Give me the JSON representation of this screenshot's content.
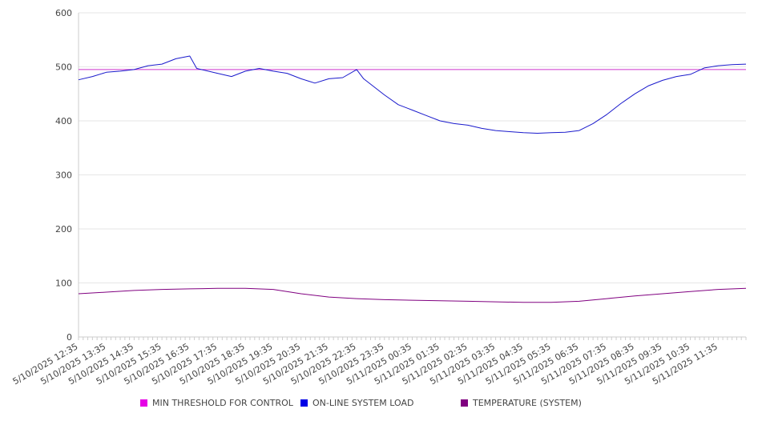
{
  "chart_data": {
    "type": "line",
    "title": "",
    "xlabel": "",
    "ylabel": "",
    "ylim": [
      0,
      600
    ],
    "yticks": [
      0,
      100,
      200,
      300,
      400,
      500,
      600
    ],
    "grid": true,
    "legend_placement": "bottom",
    "x_tick_labels": [
      "5/10/2025 12:35",
      "5/10/2025 13:35",
      "5/10/2025 14:35",
      "5/10/2025 15:35",
      "5/10/2025 16:35",
      "5/10/2025 17:35",
      "5/10/2025 18:35",
      "5/10/2025 19:35",
      "5/10/2025 20:35",
      "5/10/2025 21:35",
      "5/10/2025 22:35",
      "5/10/2025 23:35",
      "5/11/2025 00:35",
      "5/11/2025 01:35",
      "5/11/2025 02:35",
      "5/11/2025 03:35",
      "5/11/2025 04:35",
      "5/11/2025 05:35",
      "5/11/2025 06:35",
      "5/11/2025 07:35",
      "5/11/2025 08:35",
      "5/11/2025 09:35",
      "5/11/2025 10:35",
      "5/11/2025 11:35"
    ],
    "x_range": [
      "5/10/2025 12:35",
      "5/11/2025 12:35"
    ],
    "series": [
      {
        "name": "MIN THRESHOLD FOR CONTROL",
        "color": "#e600e6",
        "line_color": "#cc33cc",
        "points": [
          [
            "5/10/2025 12:35",
            495
          ],
          [
            "5/11/2025 12:35",
            495
          ]
        ]
      },
      {
        "name": "ON-LINE SYSTEM LOAD",
        "color": "#0000e6",
        "line_color": "#1a1acc",
        "points": [
          [
            "5/10/2025 12:35",
            476
          ],
          [
            "5/10/2025 13:05",
            482
          ],
          [
            "5/10/2025 13:35",
            490
          ],
          [
            "5/10/2025 14:05",
            492
          ],
          [
            "5/10/2025 14:35",
            495
          ],
          [
            "5/10/2025 15:05",
            502
          ],
          [
            "5/10/2025 15:35",
            505
          ],
          [
            "5/10/2025 16:05",
            515
          ],
          [
            "5/10/2025 16:35",
            520
          ],
          [
            "5/10/2025 16:50",
            497
          ],
          [
            "5/10/2025 17:35",
            488
          ],
          [
            "5/10/2025 18:05",
            482
          ],
          [
            "5/10/2025 18:35",
            492
          ],
          [
            "5/10/2025 19:05",
            497
          ],
          [
            "5/10/2025 19:35",
            492
          ],
          [
            "5/10/2025 20:05",
            488
          ],
          [
            "5/10/2025 20:35",
            478
          ],
          [
            "5/10/2025 21:05",
            470
          ],
          [
            "5/10/2025 21:35",
            478
          ],
          [
            "5/10/2025 22:05",
            480
          ],
          [
            "5/10/2025 22:35",
            495
          ],
          [
            "5/10/2025 22:50",
            478
          ],
          [
            "5/10/2025 23:35",
            448
          ],
          [
            "5/11/2025 00:05",
            430
          ],
          [
            "5/11/2025 00:35",
            420
          ],
          [
            "5/11/2025 01:05",
            410
          ],
          [
            "5/11/2025 01:35",
            400
          ],
          [
            "5/11/2025 02:05",
            395
          ],
          [
            "5/11/2025 02:35",
            392
          ],
          [
            "5/11/2025 03:05",
            386
          ],
          [
            "5/11/2025 03:35",
            382
          ],
          [
            "5/11/2025 04:05",
            380
          ],
          [
            "5/11/2025 04:35",
            378
          ],
          [
            "5/11/2025 05:05",
            377
          ],
          [
            "5/11/2025 05:35",
            378
          ],
          [
            "5/11/2025 06:05",
            379
          ],
          [
            "5/11/2025 06:35",
            382
          ],
          [
            "5/11/2025 07:05",
            395
          ],
          [
            "5/11/2025 07:35",
            412
          ],
          [
            "5/11/2025 08:05",
            432
          ],
          [
            "5/11/2025 08:35",
            450
          ],
          [
            "5/11/2025 09:05",
            465
          ],
          [
            "5/11/2025 09:35",
            475
          ],
          [
            "5/11/2025 10:05",
            482
          ],
          [
            "5/11/2025 10:35",
            486
          ],
          [
            "5/11/2025 11:05",
            498
          ],
          [
            "5/11/2025 11:35",
            502
          ],
          [
            "5/11/2025 12:05",
            504
          ],
          [
            "5/11/2025 12:35",
            505
          ]
        ]
      },
      {
        "name": "TEMPERATURE (SYSTEM)",
        "color": "#800080",
        "line_color": "#800080",
        "points": [
          [
            "5/10/2025 12:35",
            80
          ],
          [
            "5/10/2025 13:35",
            83
          ],
          [
            "5/10/2025 14:35",
            86
          ],
          [
            "5/10/2025 15:35",
            88
          ],
          [
            "5/10/2025 16:35",
            89
          ],
          [
            "5/10/2025 17:35",
            90
          ],
          [
            "5/10/2025 18:35",
            90
          ],
          [
            "5/10/2025 19:35",
            88
          ],
          [
            "5/10/2025 20:35",
            80
          ],
          [
            "5/10/2025 21:35",
            74
          ],
          [
            "5/10/2025 22:35",
            71
          ],
          [
            "5/10/2025 23:35",
            69
          ],
          [
            "5/11/2025 00:35",
            68
          ],
          [
            "5/11/2025 01:35",
            67
          ],
          [
            "5/11/2025 02:35",
            66
          ],
          [
            "5/11/2025 03:35",
            65
          ],
          [
            "5/11/2025 04:35",
            64
          ],
          [
            "5/11/2025 05:35",
            64
          ],
          [
            "5/11/2025 06:35",
            66
          ],
          [
            "5/11/2025 07:35",
            71
          ],
          [
            "5/11/2025 08:35",
            76
          ],
          [
            "5/11/2025 09:35",
            80
          ],
          [
            "5/11/2025 10:35",
            84
          ],
          [
            "5/11/2025 11:35",
            88
          ],
          [
            "5/11/2025 12:35",
            90
          ]
        ]
      }
    ]
  }
}
